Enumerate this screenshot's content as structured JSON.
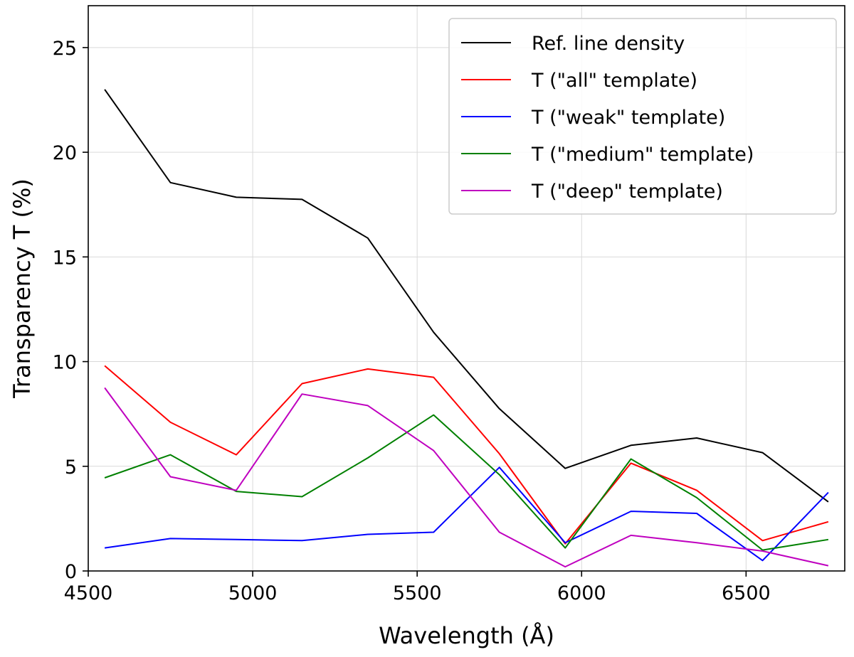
{
  "chart_data": {
    "type": "line",
    "title": "",
    "xlabel": "Wavelength (Å)",
    "ylabel": "Transparency T (%)",
    "xlim": [
      4500,
      6800
    ],
    "ylim": [
      0,
      27
    ],
    "xticks": [
      4500,
      5000,
      5500,
      6000,
      6500
    ],
    "yticks": [
      0,
      5,
      10,
      15,
      20,
      25
    ],
    "x": [
      4550,
      4750,
      4950,
      5150,
      5350,
      5550,
      5750,
      5950,
      6150,
      6350,
      6550,
      6750
    ],
    "grid": true,
    "legend_position": "top-right",
    "series": [
      {
        "name": "Ref. line density",
        "color": "#000000",
        "values": [
          23.0,
          18.55,
          17.85,
          17.75,
          15.9,
          11.4,
          7.75,
          4.9,
          6.0,
          6.35,
          5.65,
          3.3
        ]
      },
      {
        "name": "T (\"all\" template)",
        "color": "#ff0000",
        "values": [
          9.8,
          7.1,
          5.55,
          8.95,
          9.65,
          9.25,
          5.6,
          1.3,
          5.15,
          3.85,
          1.45,
          2.35
        ]
      },
      {
        "name": "T (\"weak\" template)",
        "color": "#0000ff",
        "values": [
          1.1,
          1.55,
          1.5,
          1.45,
          1.75,
          1.85,
          4.95,
          1.35,
          2.85,
          2.75,
          0.5,
          3.75
        ]
      },
      {
        "name": "T (\"medium\" template)",
        "color": "#008000",
        "values": [
          4.45,
          5.55,
          3.8,
          3.55,
          5.4,
          7.45,
          4.6,
          1.1,
          5.35,
          3.5,
          1.0,
          1.5
        ]
      },
      {
        "name": "T (\"deep\" template)",
        "color": "#bf00bf",
        "values": [
          8.75,
          4.5,
          3.85,
          8.45,
          7.9,
          5.75,
          1.85,
          0.2,
          1.7,
          1.35,
          0.95,
          0.25
        ]
      }
    ]
  }
}
